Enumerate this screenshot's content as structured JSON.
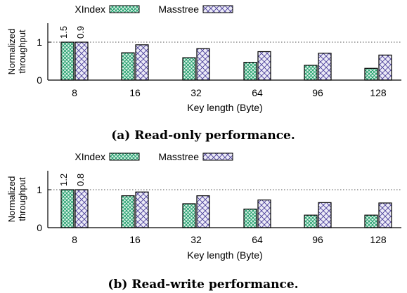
{
  "colors": {
    "xindex_fill": "#dff3ea",
    "xindex_hatch": "#1f9e6b",
    "masstree_fill": "#ecebf7",
    "masstree_hatch": "#4a3f9a",
    "axis": "#000000",
    "gridline": "#555555"
  },
  "chart_data": [
    {
      "type": "bar",
      "caption": "(a) Read-only performance.",
      "xlabel": "Key length (Byte)",
      "ylabel_line1": "Normalized",
      "ylabel_line2": "throughput",
      "ylim": [
        0,
        1.5
      ],
      "yticks": [
        "0",
        "1"
      ],
      "grid": "dashed line at y=1",
      "legend": "top-left, horizontal",
      "categories": [
        "8",
        "16",
        "32",
        "64",
        "96",
        "128"
      ],
      "series": [
        {
          "name": "XIndex",
          "values": [
            1.0,
            0.72,
            0.59,
            0.47,
            0.39,
            0.31
          ]
        },
        {
          "name": "Masstree",
          "values": [
            1.0,
            0.93,
            0.83,
            0.75,
            0.71,
            0.66
          ]
        }
      ],
      "annotations": [
        "1.5",
        "0.9"
      ]
    },
    {
      "type": "bar",
      "caption": "(b) Read-write performance.",
      "xlabel": "Key length (Byte)",
      "ylabel_line1": "Normalized",
      "ylabel_line2": "throughput",
      "ylim": [
        0,
        1.5
      ],
      "yticks": [
        "0",
        "1"
      ],
      "grid": "dashed line at y=1",
      "legend": "top-left, horizontal",
      "categories": [
        "8",
        "16",
        "32",
        "64",
        "96",
        "128"
      ],
      "series": [
        {
          "name": "XIndex",
          "values": [
            1.0,
            0.84,
            0.63,
            0.49,
            0.33,
            0.33
          ]
        },
        {
          "name": "Masstree",
          "values": [
            1.0,
            0.94,
            0.84,
            0.73,
            0.66,
            0.65
          ]
        }
      ],
      "annotations": [
        "1.2",
        "0.8"
      ]
    }
  ]
}
